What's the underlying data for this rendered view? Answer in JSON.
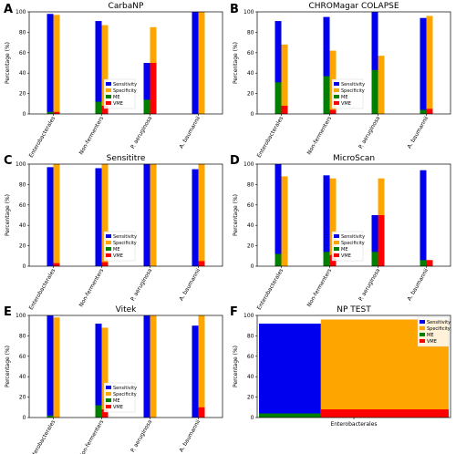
{
  "colors": {
    "sensitivity": "#0000ee",
    "specificity": "#ffa500",
    "me": "#008000",
    "vme": "#ff0000"
  },
  "chart_data": [
    {
      "letter": "A",
      "title": "CarbaNP",
      "type": "bar",
      "ylabel": "Percentage (%)",
      "ylim": [
        0,
        100
      ],
      "yticks": [
        0,
        20,
        40,
        60,
        80,
        100
      ],
      "categories": [
        "Enterobacterales",
        "Non-fermenters",
        "P. aeruginosa",
        "A. baumannii"
      ],
      "series": [
        {
          "name": "Sensitivity",
          "values": [
            98,
            91,
            50,
            100
          ]
        },
        {
          "name": "Specificity",
          "values": [
            97,
            87,
            85,
            100
          ]
        },
        {
          "name": "ME",
          "values": [
            2,
            12,
            14,
            0
          ]
        },
        {
          "name": "VME",
          "values": [
            2,
            8,
            50,
            0
          ]
        }
      ],
      "legend": "lower-right"
    },
    {
      "letter": "B",
      "title": "CHROMagar COLAPSE",
      "type": "bar",
      "ylabel": "Percentage (%)",
      "ylim": [
        0,
        100
      ],
      "yticks": [
        0,
        20,
        40,
        60,
        80,
        100
      ],
      "categories": [
        "Enterobacterales",
        "Non-fermenters",
        "P. aeruginosa",
        "A. baumannii"
      ],
      "series": [
        {
          "name": "Sensitivity",
          "values": [
            91,
            95,
            100,
            94
          ]
        },
        {
          "name": "Specificity",
          "values": [
            68,
            62,
            57,
            96
          ]
        },
        {
          "name": "ME",
          "values": [
            31,
            37,
            43,
            4
          ]
        },
        {
          "name": "VME",
          "values": [
            8,
            4,
            0,
            5
          ]
        }
      ],
      "legend": "lower-right"
    },
    {
      "letter": "C",
      "title": "Sensititre",
      "type": "bar",
      "ylabel": "Percentage (%)",
      "ylim": [
        0,
        100
      ],
      "yticks": [
        0,
        20,
        40,
        60,
        80,
        100
      ],
      "categories": [
        "Enterobacterales",
        "Non-fermenters",
        "P. aeruginosa",
        "A. baumannii"
      ],
      "series": [
        {
          "name": "Sensitivity",
          "values": [
            97,
            96,
            100,
            95
          ]
        },
        {
          "name": "Specificity",
          "values": [
            100,
            100,
            100,
            100
          ]
        },
        {
          "name": "ME",
          "values": [
            0,
            0,
            0,
            0
          ]
        },
        {
          "name": "VME",
          "values": [
            3,
            4,
            0,
            5
          ]
        }
      ],
      "legend": "lower-right"
    },
    {
      "letter": "D",
      "title": "MicroScan",
      "type": "bar",
      "ylabel": "Percentage (%)",
      "ylim": [
        0,
        100
      ],
      "yticks": [
        0,
        20,
        40,
        60,
        80,
        100
      ],
      "categories": [
        "Enterobacterales",
        "Non-fermenters",
        "P. aeruginosa",
        "A. baumannii"
      ],
      "series": [
        {
          "name": "Sensitivity",
          "values": [
            100,
            89,
            50,
            94
          ]
        },
        {
          "name": "Specificity",
          "values": [
            88,
            86,
            86,
            0
          ]
        },
        {
          "name": "ME",
          "values": [
            12,
            14,
            14,
            6
          ]
        },
        {
          "name": "VME",
          "values": [
            0,
            11,
            50,
            6
          ]
        }
      ],
      "legend": "lower-right"
    },
    {
      "letter": "E",
      "title": "Vitek",
      "type": "bar",
      "ylabel": "Percentage (%)",
      "ylim": [
        0,
        100
      ],
      "yticks": [
        0,
        20,
        40,
        60,
        80,
        100
      ],
      "categories": [
        "Enterobacterales",
        "Non-fermenters",
        "P. aeruginosa",
        "A. baumannii"
      ],
      "series": [
        {
          "name": "Sensitivity",
          "values": [
            100,
            92,
            100,
            90
          ]
        },
        {
          "name": "Specificity",
          "values": [
            98,
            88,
            100,
            100
          ]
        },
        {
          "name": "ME",
          "values": [
            2,
            12,
            0,
            0
          ]
        },
        {
          "name": "VME",
          "values": [
            0,
            8,
            0,
            10
          ]
        }
      ],
      "legend": "lower-right"
    },
    {
      "letter": "F",
      "title": "NP TEST",
      "type": "bar",
      "ylabel": "Percentage (%)",
      "ylim": [
        0,
        100
      ],
      "yticks": [
        0,
        20,
        40,
        60,
        80,
        100
      ],
      "categories": [
        "Enterobacterales"
      ],
      "series": [
        {
          "name": "Sensitivity",
          "values": [
            92
          ]
        },
        {
          "name": "Specificity",
          "values": [
            96
          ]
        },
        {
          "name": "ME",
          "values": [
            4
          ]
        },
        {
          "name": "VME",
          "values": [
            8
          ]
        }
      ],
      "legend": "top-right"
    }
  ]
}
